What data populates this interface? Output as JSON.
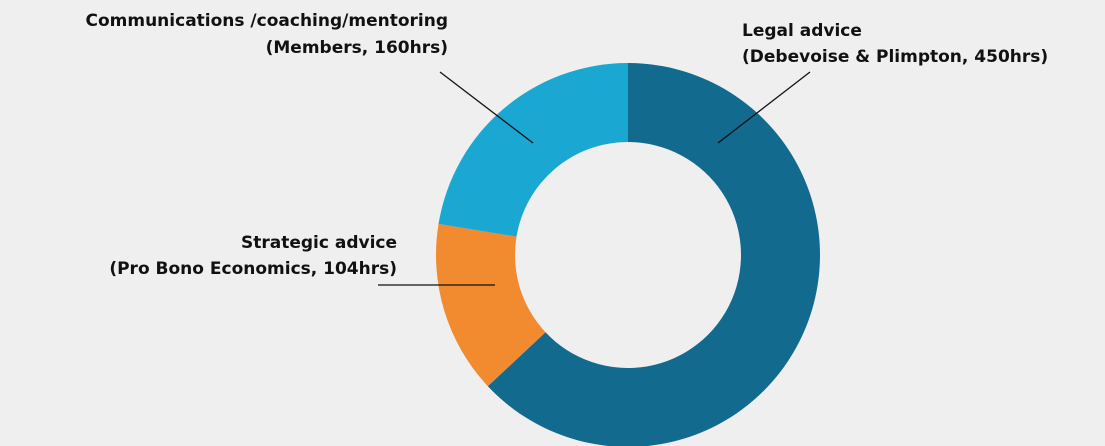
{
  "chart_data": {
    "type": "donut",
    "categories": [
      "Legal advice",
      "Strategic advice",
      "Communications /coaching/mentoring"
    ],
    "values": [
      450,
      104,
      160
    ],
    "value_labels": [
      "(Debevoise & Plimpton, 450hrs)",
      "(Pro Bono Economics, 104hrs)",
      "(Members, 160hrs)"
    ],
    "colors": [
      "#136a8f",
      "#f28a30",
      "#1aa7d1"
    ]
  }
}
